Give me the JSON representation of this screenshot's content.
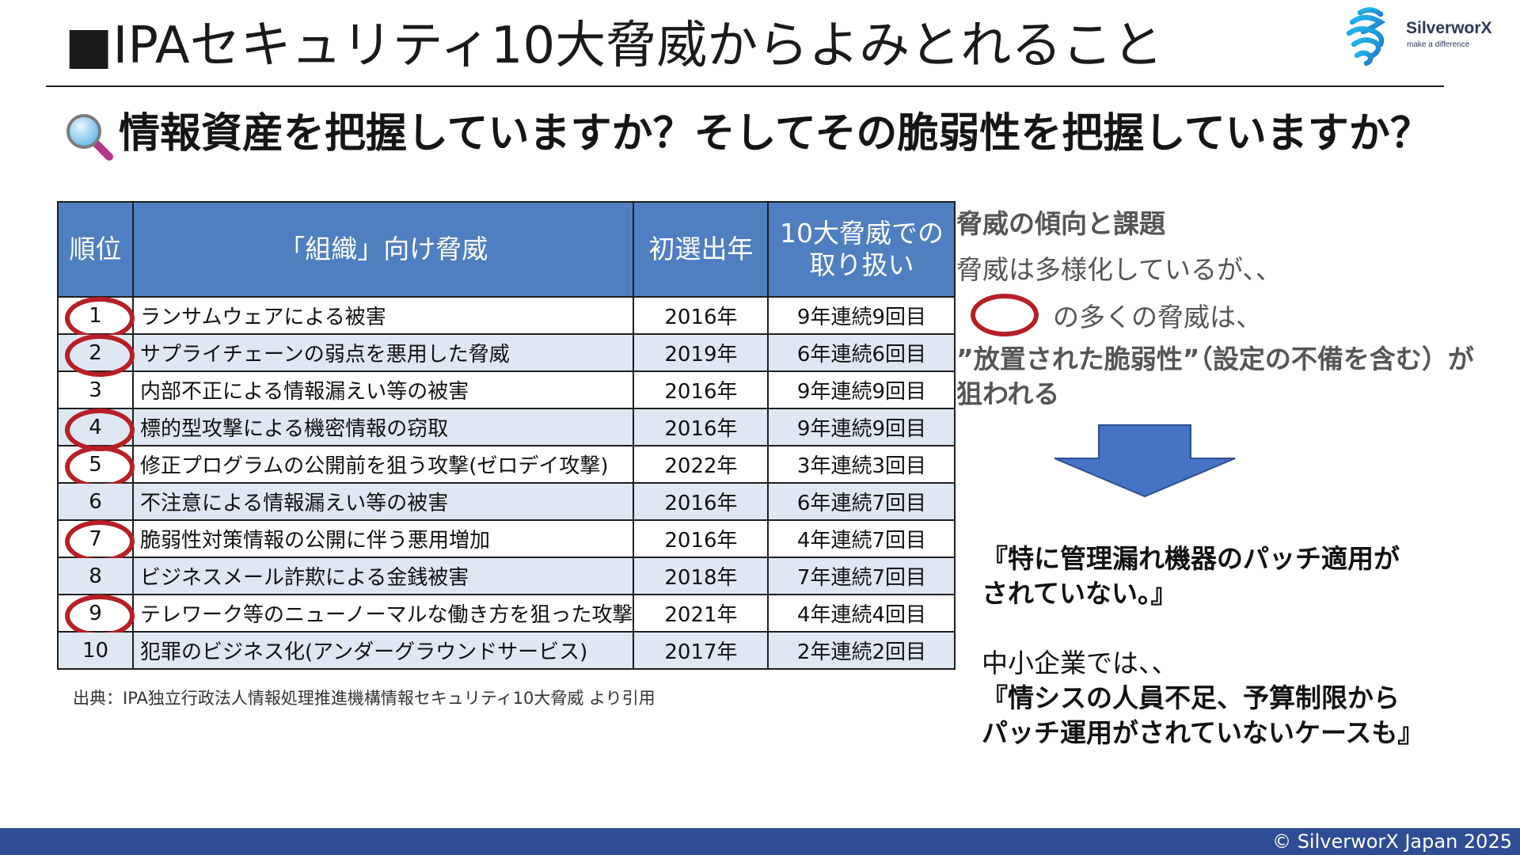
{
  "header": {
    "title": "■IPAセキュリティ10大脅威からよみとれること",
    "logo_name": "SilverworX",
    "logo_tagline": "make a difference"
  },
  "subtitle": "情報資産を把握していますか？そしてその脆弱性を把握していますか？",
  "table": {
    "headers": [
      "順位",
      "「組織」向け脅威",
      "初選出年",
      "10大脅威での\n取り扱い"
    ],
    "rows": [
      {
        "rank": "1",
        "threat": "ランサムウェアによる被害",
        "year": "2016年",
        "history": "9年連続9回目",
        "circled": true
      },
      {
        "rank": "2",
        "threat": "サプライチェーンの弱点を悪用した脅威",
        "year": "2019年",
        "history": "6年連続6回目",
        "circled": true
      },
      {
        "rank": "3",
        "threat": "内部不正による情報漏えい等の被害",
        "year": "2016年",
        "history": "9年連続9回目",
        "circled": false
      },
      {
        "rank": "4",
        "threat": "標的型攻撃による機密情報の窃取",
        "year": "2016年",
        "history": "9年連続9回目",
        "circled": true
      },
      {
        "rank": "5",
        "threat": "修正プログラムの公開前を狙う攻撃(ゼロデイ攻撃)",
        "year": "2022年",
        "history": "3年連続3回目",
        "circled": true
      },
      {
        "rank": "6",
        "threat": "不注意による情報漏えい等の被害",
        "year": "2016年",
        "history": "6年連続7回目",
        "circled": false
      },
      {
        "rank": "7",
        "threat": "脆弱性対策情報の公開に伴う悪用増加",
        "year": "2016年",
        "history": "4年連続7回目",
        "circled": true
      },
      {
        "rank": "8",
        "threat": "ビジネスメール詐欺による金銭被害",
        "year": "2018年",
        "history": "7年連続7回目",
        "circled": false
      },
      {
        "rank": "9",
        "threat": "テレワーク等のニューノーマルな働き方を狙った攻撃",
        "year": "2021年",
        "history": "4年連続4回目",
        "circled": true
      },
      {
        "rank": "10",
        "threat": "犯罪のビジネス化(アンダーグラウンドサービス)",
        "year": "2017年",
        "history": "2年連続2回目",
        "circled": false
      }
    ],
    "source": "出典：IPA独立行政法人情報処理推進機構情報セキュリティ10大脅威 より引用"
  },
  "trend": {
    "heading": "脅威の傾向と課題",
    "line1": "脅威は多様化しているが、、",
    "line2": "の多くの脅威は、",
    "quote": "”放置された脆弱性”（設定の不備を含む）が狙われる"
  },
  "conclusion": {
    "quote1_a": "『特に管理漏れ機器のパッチ適用が",
    "quote1_b": "されていない。』",
    "line": "中小企業では、、",
    "quote2_a": "『情シスの人員不足、予算制限から",
    "quote2_b": "パッチ運用がされていないケースも』"
  },
  "colors": {
    "header_blue": "#4f7fc1",
    "alt_row": "#dfe7f3",
    "circle_red": "#b71f26",
    "footer_blue": "#2e4d95",
    "arrow_blue": "#4674c4"
  },
  "footer": {
    "copyright": "© SilverworX Japan 2025"
  }
}
